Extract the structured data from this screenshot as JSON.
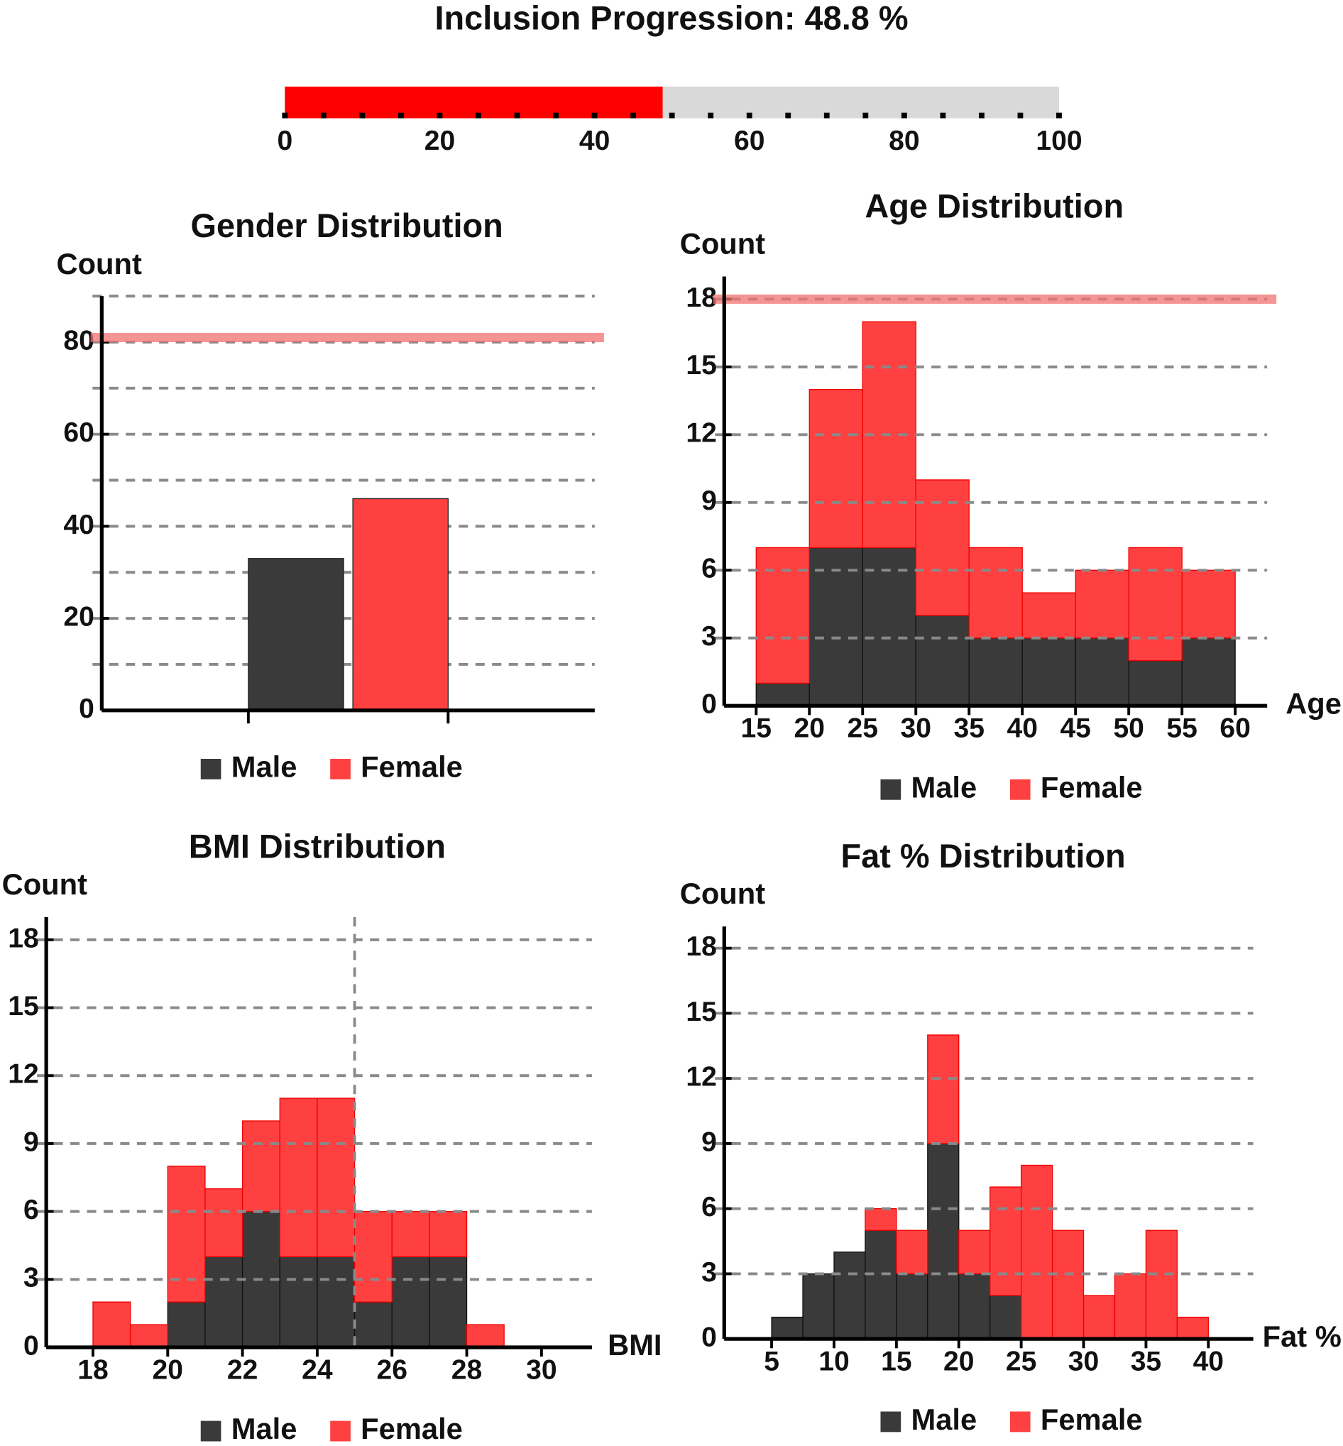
{
  "chart_data": [
    {
      "type": "progress",
      "title": "Inclusion Progression: 48.8 %",
      "value": 48.8,
      "color": "#ff0000",
      "track_color": "#d9d9d9",
      "xlim": [
        0,
        100
      ],
      "xticks": [
        0,
        20,
        40,
        60,
        80,
        100
      ],
      "minor_xticks": [
        5,
        10,
        15,
        25,
        30,
        35,
        45,
        50,
        55,
        65,
        70,
        75,
        85,
        90,
        95
      ]
    },
    {
      "type": "bar",
      "title": "Gender Distribution",
      "ylabel": "Count",
      "categories": [
        null
      ],
      "series": [
        {
          "name": "Male",
          "color": "#3a3a3a",
          "values": [
            33
          ]
        },
        {
          "name": "Female",
          "color": "#ff4040",
          "values": [
            46
          ]
        }
      ],
      "ylim": [
        0,
        90
      ],
      "yticks": [
        0,
        20,
        40,
        60,
        80
      ],
      "minor_yticks": [
        10,
        30,
        50,
        70,
        90
      ],
      "grid": true,
      "target": 81
    },
    {
      "type": "histogram",
      "title": "Age Distribution",
      "ylabel": "Count",
      "xlabel": "Age",
      "bins": [
        15,
        20,
        25,
        30,
        35,
        40,
        45,
        50,
        55,
        60
      ],
      "series": [
        {
          "name": "Male",
          "color": "#3a3a3a",
          "values": [
            1,
            7,
            7,
            4,
            3,
            3,
            3,
            2,
            3
          ]
        },
        {
          "name": "Female",
          "color": "#ff4040",
          "values": [
            6,
            7,
            10,
            6,
            4,
            2,
            3,
            5,
            3
          ]
        }
      ],
      "stacked": true,
      "xlim": [
        12,
        63
      ],
      "xticks": [
        15,
        20,
        25,
        30,
        35,
        40,
        45,
        50,
        55,
        60
      ],
      "ylim": [
        0,
        19
      ],
      "yticks": [
        0,
        3,
        6,
        9,
        12,
        15,
        18
      ],
      "grid": true,
      "target": 18
    },
    {
      "type": "histogram",
      "title": "BMI Distribution",
      "ylabel": "Count",
      "xlabel": "BMI",
      "bins": [
        18,
        19,
        20,
        21,
        22,
        23,
        24,
        25,
        26,
        27,
        28,
        29
      ],
      "series": [
        {
          "name": "Male",
          "color": "#3a3a3a",
          "values": [
            0,
            0,
            2,
            4,
            6,
            4,
            4,
            2,
            4,
            4,
            0
          ]
        },
        {
          "name": "Female",
          "color": "#ff4040",
          "values": [
            2,
            1,
            6,
            3,
            4,
            7,
            7,
            4,
            2,
            2,
            1
          ]
        }
      ],
      "stacked": true,
      "xlim": [
        16.75,
        31.35
      ],
      "xticks": [
        18,
        20,
        22,
        24,
        26,
        28,
        30
      ],
      "ylim": [
        0,
        19
      ],
      "yticks": [
        0,
        3,
        6,
        9,
        12,
        15,
        18
      ],
      "grid": true,
      "vline": 25
    },
    {
      "type": "histogram",
      "title": "Fat % Distribution",
      "ylabel": "Count",
      "xlabel": "Fat %",
      "bins": [
        5,
        7.5,
        10,
        12.5,
        15,
        17.5,
        20,
        22.5,
        25,
        27.5,
        30,
        32.5,
        35,
        37.5,
        40
      ],
      "series": [
        {
          "name": "Male",
          "color": "#3a3a3a",
          "values": [
            1,
            3,
            4,
            5,
            3,
            9,
            3,
            2,
            0,
            0,
            0,
            0,
            0,
            0
          ]
        },
        {
          "name": "Female",
          "color": "#ff4040",
          "values": [
            0,
            0,
            0,
            1,
            2,
            5,
            2,
            5,
            8,
            5,
            2,
            3,
            5,
            1
          ]
        }
      ],
      "stacked": true,
      "xlim": [
        1.2,
        43.6
      ],
      "xticks": [
        5,
        10,
        15,
        20,
        25,
        30,
        35,
        40
      ],
      "ylim": [
        0,
        19
      ],
      "yticks": [
        0,
        3,
        6,
        9,
        12,
        15,
        18
      ],
      "grid": true
    }
  ]
}
